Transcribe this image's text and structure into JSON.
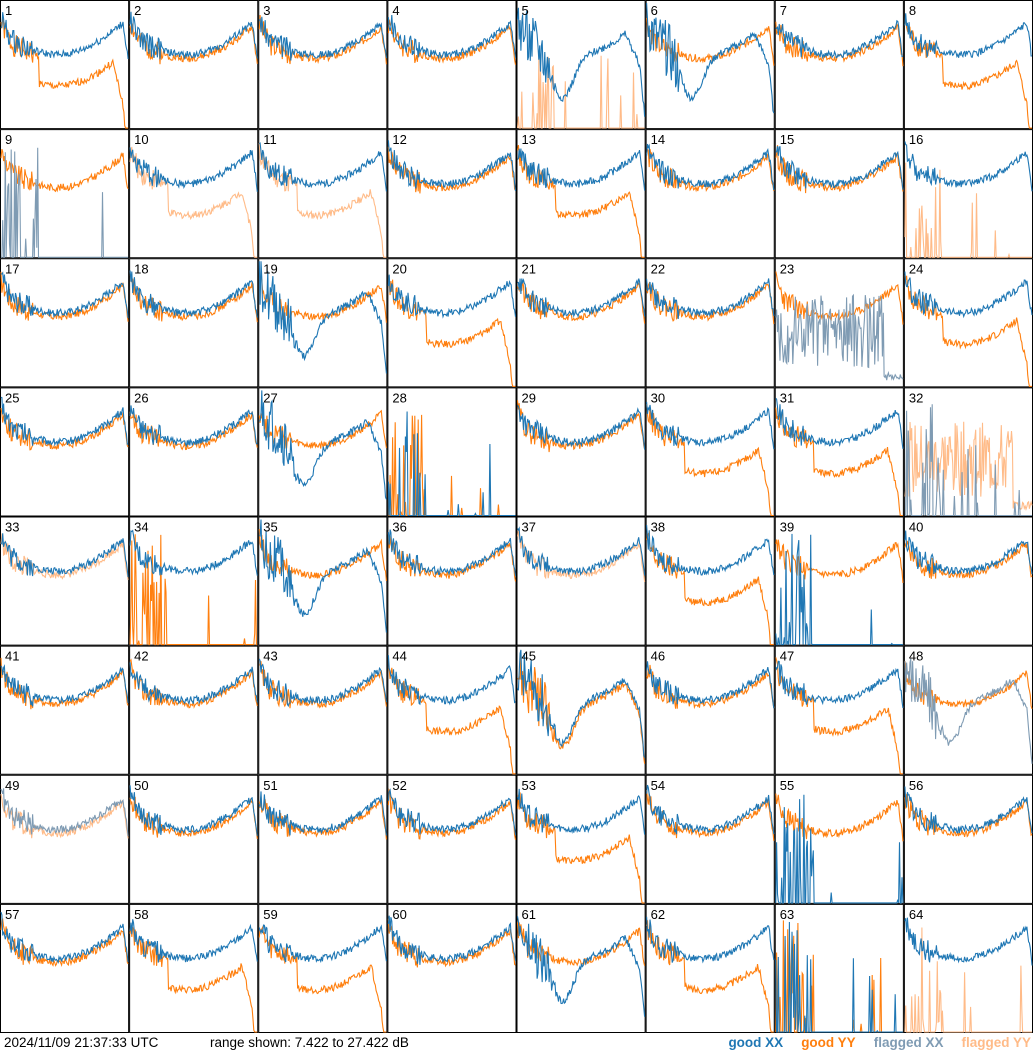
{
  "footer": {
    "timestamp": "2024/11/09 21:37:33 UTC",
    "range": "range shown: 7.422 to 27.422 dB",
    "legend": {
      "good_xx": "good XX",
      "good_yy": "good YY",
      "flagged_xx": "flagged XX",
      "flagged_yy": "flagged YY"
    }
  },
  "colors": {
    "good_xx": "#1f77b4",
    "good_yy": "#ff7f0e",
    "flagged_xx": "#7f9bb3",
    "flagged_yy": "#ffbb88"
  },
  "chart_data": {
    "type": "line",
    "layout": "8x8 grid of small multiples",
    "xlabel": "",
    "ylabel": "",
    "ylim": [
      7.422,
      27.422
    ],
    "panels": [
      {
        "id": "1",
        "xx": "good",
        "yy": "good",
        "xx_shape": "normal",
        "yy_shape": "drop"
      },
      {
        "id": "2",
        "xx": "good",
        "yy": "good",
        "xx_shape": "normal",
        "yy_shape": "normal"
      },
      {
        "id": "3",
        "xx": "good",
        "yy": "good",
        "xx_shape": "normal",
        "yy_shape": "normal"
      },
      {
        "id": "4",
        "xx": "good",
        "yy": "good",
        "xx_shape": "normal",
        "yy_shape": "normal"
      },
      {
        "id": "5",
        "xx": "good",
        "yy": "flagged",
        "xx_shape": "dip",
        "yy_shape": "spikes"
      },
      {
        "id": "6",
        "xx": "good",
        "yy": "good",
        "xx_shape": "dip",
        "yy_shape": "normal"
      },
      {
        "id": "7",
        "xx": "good",
        "yy": "good",
        "xx_shape": "normal",
        "yy_shape": "normal"
      },
      {
        "id": "8",
        "xx": "good",
        "yy": "good",
        "xx_shape": "normal",
        "yy_shape": "drop"
      },
      {
        "id": "9",
        "xx": "flagged",
        "yy": "good",
        "xx_shape": "spikes",
        "yy_shape": "normal"
      },
      {
        "id": "10",
        "xx": "good",
        "yy": "flagged",
        "xx_shape": "normal",
        "yy_shape": "drop"
      },
      {
        "id": "11",
        "xx": "good",
        "yy": "flagged",
        "xx_shape": "normal",
        "yy_shape": "drop"
      },
      {
        "id": "12",
        "xx": "good",
        "yy": "good",
        "xx_shape": "normal",
        "yy_shape": "normal"
      },
      {
        "id": "13",
        "xx": "good",
        "yy": "good",
        "xx_shape": "normal",
        "yy_shape": "drop"
      },
      {
        "id": "14",
        "xx": "good",
        "yy": "good",
        "xx_shape": "normal",
        "yy_shape": "normal"
      },
      {
        "id": "15",
        "xx": "good",
        "yy": "good",
        "xx_shape": "normal",
        "yy_shape": "normal"
      },
      {
        "id": "16",
        "xx": "good",
        "yy": "flagged",
        "xx_shape": "normal",
        "yy_shape": "spikes"
      },
      {
        "id": "17",
        "xx": "good",
        "yy": "good",
        "xx_shape": "normal",
        "yy_shape": "normal"
      },
      {
        "id": "18",
        "xx": "good",
        "yy": "good",
        "xx_shape": "normal",
        "yy_shape": "normal"
      },
      {
        "id": "19",
        "xx": "good",
        "yy": "good",
        "xx_shape": "dip",
        "yy_shape": "normal"
      },
      {
        "id": "20",
        "xx": "good",
        "yy": "good",
        "xx_shape": "normal",
        "yy_shape": "drop"
      },
      {
        "id": "21",
        "xx": "good",
        "yy": "good",
        "xx_shape": "normal",
        "yy_shape": "normal"
      },
      {
        "id": "22",
        "xx": "good",
        "yy": "good",
        "xx_shape": "normal",
        "yy_shape": "normal"
      },
      {
        "id": "23",
        "xx": "flagged",
        "yy": "good",
        "xx_shape": "noisy",
        "yy_shape": "normal"
      },
      {
        "id": "24",
        "xx": "good",
        "yy": "good",
        "xx_shape": "normal",
        "yy_shape": "drop"
      },
      {
        "id": "25",
        "xx": "good",
        "yy": "good",
        "xx_shape": "normal",
        "yy_shape": "normal"
      },
      {
        "id": "26",
        "xx": "good",
        "yy": "good",
        "xx_shape": "normal",
        "yy_shape": "normal"
      },
      {
        "id": "27",
        "xx": "good",
        "yy": "good",
        "xx_shape": "dip",
        "yy_shape": "normal"
      },
      {
        "id": "28",
        "xx": "good",
        "yy": "good",
        "xx_shape": "spikes",
        "yy_shape": "spikes"
      },
      {
        "id": "29",
        "xx": "good",
        "yy": "good",
        "xx_shape": "normal",
        "yy_shape": "normal"
      },
      {
        "id": "30",
        "xx": "good",
        "yy": "good",
        "xx_shape": "normal",
        "yy_shape": "drop"
      },
      {
        "id": "31",
        "xx": "good",
        "yy": "good",
        "xx_shape": "normal",
        "yy_shape": "drop"
      },
      {
        "id": "32",
        "xx": "flagged",
        "yy": "flagged",
        "xx_shape": "spikes",
        "yy_shape": "noisy"
      },
      {
        "id": "33",
        "xx": "good",
        "yy": "flagged",
        "xx_shape": "normal",
        "yy_shape": "normal"
      },
      {
        "id": "34",
        "xx": "good",
        "yy": "good",
        "xx_shape": "normal",
        "yy_shape": "spikes"
      },
      {
        "id": "35",
        "xx": "good",
        "yy": "good",
        "xx_shape": "dip",
        "yy_shape": "normal"
      },
      {
        "id": "36",
        "xx": "good",
        "yy": "good",
        "xx_shape": "normal",
        "yy_shape": "normal"
      },
      {
        "id": "37",
        "xx": "good",
        "yy": "flagged",
        "xx_shape": "normal",
        "yy_shape": "normal"
      },
      {
        "id": "38",
        "xx": "good",
        "yy": "good",
        "xx_shape": "normal",
        "yy_shape": "drop"
      },
      {
        "id": "39",
        "xx": "good",
        "yy": "good",
        "xx_shape": "spikes",
        "yy_shape": "normal"
      },
      {
        "id": "40",
        "xx": "good",
        "yy": "good",
        "xx_shape": "normal",
        "yy_shape": "normal"
      },
      {
        "id": "41",
        "xx": "good",
        "yy": "good",
        "xx_shape": "normal",
        "yy_shape": "normal"
      },
      {
        "id": "42",
        "xx": "good",
        "yy": "good",
        "xx_shape": "normal",
        "yy_shape": "normal"
      },
      {
        "id": "43",
        "xx": "good",
        "yy": "good",
        "xx_shape": "normal",
        "yy_shape": "normal"
      },
      {
        "id": "44",
        "xx": "good",
        "yy": "good",
        "xx_shape": "normal",
        "yy_shape": "drop"
      },
      {
        "id": "45",
        "xx": "good",
        "yy": "good",
        "xx_shape": "dip",
        "yy_shape": "dip"
      },
      {
        "id": "46",
        "xx": "good",
        "yy": "good",
        "xx_shape": "normal",
        "yy_shape": "normal"
      },
      {
        "id": "47",
        "xx": "good",
        "yy": "good",
        "xx_shape": "normal",
        "yy_shape": "drop"
      },
      {
        "id": "48",
        "xx": "flagged",
        "yy": "good",
        "xx_shape": "dip",
        "yy_shape": "normal"
      },
      {
        "id": "49",
        "xx": "flagged",
        "yy": "flagged",
        "xx_shape": "normal",
        "yy_shape": "normal"
      },
      {
        "id": "50",
        "xx": "good",
        "yy": "good",
        "xx_shape": "normal",
        "yy_shape": "normal"
      },
      {
        "id": "51",
        "xx": "good",
        "yy": "good",
        "xx_shape": "normal",
        "yy_shape": "normal"
      },
      {
        "id": "52",
        "xx": "good",
        "yy": "good",
        "xx_shape": "normal",
        "yy_shape": "normal"
      },
      {
        "id": "53",
        "xx": "good",
        "yy": "good",
        "xx_shape": "normal",
        "yy_shape": "drop"
      },
      {
        "id": "54",
        "xx": "good",
        "yy": "good",
        "xx_shape": "normal",
        "yy_shape": "normal"
      },
      {
        "id": "55",
        "xx": "good",
        "yy": "good",
        "xx_shape": "spikes",
        "yy_shape": "normal"
      },
      {
        "id": "56",
        "xx": "good",
        "yy": "good",
        "xx_shape": "normal",
        "yy_shape": "normal"
      },
      {
        "id": "57",
        "xx": "good",
        "yy": "good",
        "xx_shape": "normal",
        "yy_shape": "normal"
      },
      {
        "id": "58",
        "xx": "good",
        "yy": "good",
        "xx_shape": "normal",
        "yy_shape": "drop"
      },
      {
        "id": "59",
        "xx": "good",
        "yy": "good",
        "xx_shape": "normal",
        "yy_shape": "drop"
      },
      {
        "id": "60",
        "xx": "good",
        "yy": "good",
        "xx_shape": "normal",
        "yy_shape": "normal"
      },
      {
        "id": "61",
        "xx": "good",
        "yy": "good",
        "xx_shape": "dip",
        "yy_shape": "normal"
      },
      {
        "id": "62",
        "xx": "good",
        "yy": "good",
        "xx_shape": "normal",
        "yy_shape": "drop"
      },
      {
        "id": "63",
        "xx": "good",
        "yy": "good",
        "xx_shape": "spikes",
        "yy_shape": "spikes"
      },
      {
        "id": "64",
        "xx": "good",
        "yy": "flagged",
        "xx_shape": "normal",
        "yy_shape": "spikes"
      }
    ]
  }
}
